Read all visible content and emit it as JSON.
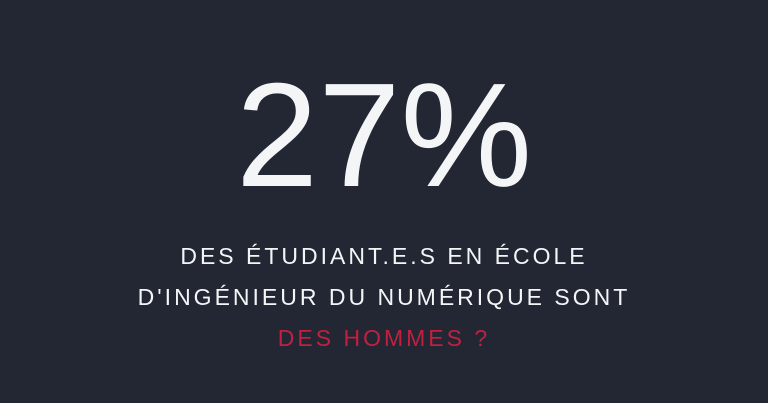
{
  "card": {
    "stat_value": "27%",
    "caption_line1": "DES ÉTUDIANT.E.S EN ÉCOLE",
    "caption_line2": "D'INGÉNIEUR DU NUMÉRIQUE SONT",
    "highlight_line": "DES HOMMES ?"
  },
  "theme": {
    "background": "#222733",
    "text_color": "#f4f5f7",
    "accent_color": "#c31f40"
  }
}
